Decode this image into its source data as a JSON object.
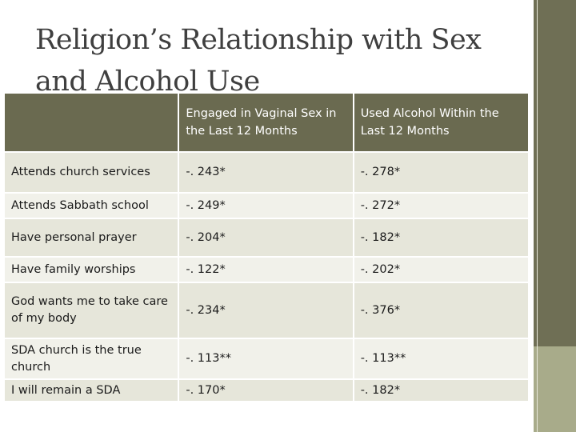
{
  "slide": {
    "title_line1": "Religion’s Relationship with Sex",
    "title_line2": "and Alcohol Use"
  },
  "table": {
    "headers": [
      "",
      "Engaged in Vaginal Sex in the Last 12 Months",
      "Used Alcohol Within the Last 12 Months"
    ],
    "rows": [
      {
        "label": "Attends church services",
        "sex": "-. 243*",
        "alcohol": "-. 278*"
      },
      {
        "label": "Attends Sabbath school",
        "sex": "-. 249*",
        "alcohol": "-. 272*"
      },
      {
        "label": "Have personal prayer",
        "sex": "-. 204*",
        "alcohol": "-. 182*"
      },
      {
        "label": "Have family worships",
        "sex": "-. 122*",
        "alcohol": "-. 202*"
      },
      {
        "label": "God wants me to take care of my body",
        "sex": "-. 234*",
        "alcohol": "-. 376*"
      },
      {
        "label": "SDA church is the true church",
        "sex": "-. 113**",
        "alcohol": "-. 113**"
      },
      {
        "label": "I will remain a SDA",
        "sex": "-. 170*",
        "alcohol": "-. 182*"
      }
    ]
  },
  "colors": {
    "header_bg": "#6a6a50",
    "sidebar": "#8a8a6a",
    "row_light": "#f1f1ea",
    "row_dark": "#e6e6da"
  }
}
